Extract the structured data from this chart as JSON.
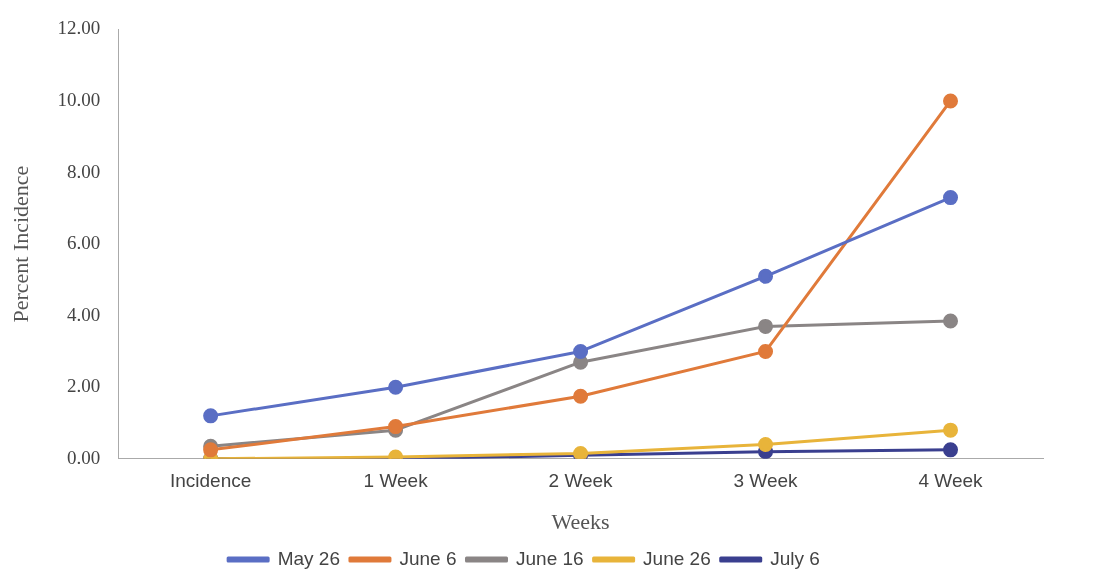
{
  "chart_data": {
    "type": "line",
    "xlabel": "Weeks",
    "ylabel": "Percent Incidence",
    "categories": [
      "Incidence",
      "1 Week",
      "2 Week",
      "3 Week",
      "4 Week"
    ],
    "series": [
      {
        "name": "May 26",
        "color": "#5a6ec4",
        "values": [
          1.2,
          2.0,
          3.0,
          5.1,
          7.3
        ]
      },
      {
        "name": "June 6",
        "color": "#e07a3a",
        "values": [
          0.25,
          0.9,
          1.75,
          3.0,
          10.0
        ]
      },
      {
        "name": "June 16",
        "color": "#8a8585",
        "values": [
          0.35,
          0.8,
          2.7,
          3.7,
          3.85
        ]
      },
      {
        "name": "June 26",
        "color": "#e8b43a",
        "values": [
          0.0,
          0.05,
          0.15,
          0.4,
          0.8
        ]
      },
      {
        "name": "July 6",
        "color": "#3a3f8f",
        "values": [
          0.0,
          0.0,
          0.1,
          0.2,
          0.25
        ]
      }
    ],
    "ylim": [
      0,
      12
    ],
    "yticks": [
      {
        "value": 0,
        "label": "0.00"
      },
      {
        "value": 2,
        "label": "2.00"
      },
      {
        "value": 4,
        "label": "4.00"
      },
      {
        "value": 6,
        "label": "6.00"
      },
      {
        "value": 8,
        "label": "8.00"
      },
      {
        "value": 10,
        "label": "10.00"
      },
      {
        "value": 12,
        "label": "12.00"
      }
    ],
    "grid": false,
    "legend": "bottom",
    "marker": "circle",
    "line_style": "solid"
  }
}
